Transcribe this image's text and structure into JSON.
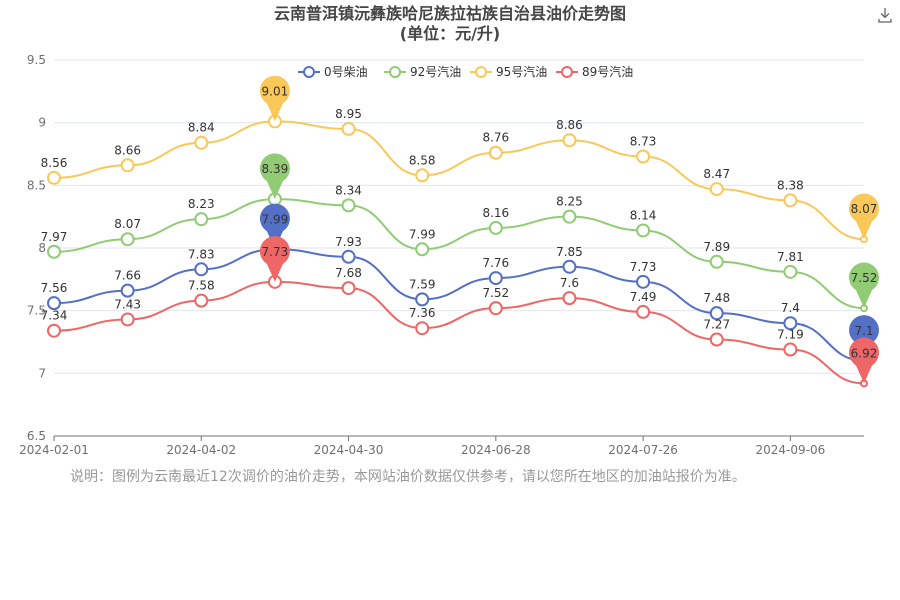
{
  "title_line1": "云南普洱镇沅彝族哈尼族拉祜族自治县油价走势图",
  "title_line2": "(单位：元/升)",
  "note": "说明：图例为云南最近12次调价的油价走势，本网站油价数据仅供参考，请以您所在地区的加油站报价为准。",
  "download_icon": "download-icon",
  "chart_data": {
    "type": "line",
    "title": "云南普洱镇沅彝族哈尼族拉祜族自治县油价走势图",
    "subtitle": "(单位：元/升)",
    "ylim": [
      6.5,
      9.5
    ],
    "yticks": [
      6.5,
      7,
      7.5,
      8,
      8.5,
      9,
      9.5
    ],
    "ytick_labels": [
      "6.5",
      "7",
      "7.5",
      "8",
      "8.5",
      "9",
      "9.5"
    ],
    "xticks": [
      "2024-02-01",
      "2024-04-02",
      "2024-04-30",
      "2024-06-28",
      "2024-07-26",
      "2024-09-06"
    ],
    "xtick_positions": [
      0,
      2,
      4,
      6,
      8,
      10
    ],
    "point_count": 12,
    "legend_position": "top-center",
    "grid": "horizontal",
    "series": [
      {
        "name": "0号柴油",
        "color": "#5470c6",
        "values": [
          7.56,
          7.66,
          7.83,
          7.99,
          7.93,
          7.59,
          7.76,
          7.85,
          7.73,
          7.48,
          7.4,
          7.1
        ],
        "max_label": "7.99",
        "last_label": "7.1"
      },
      {
        "name": "92号汽油",
        "color": "#91cc75",
        "values": [
          7.97,
          8.07,
          8.23,
          8.39,
          8.34,
          7.99,
          8.16,
          8.25,
          8.14,
          7.89,
          7.81,
          7.52
        ],
        "max_label": "8.39",
        "last_label": "7.52"
      },
      {
        "name": "95号汽油",
        "color": "#fac858",
        "values": [
          8.56,
          8.66,
          8.84,
          9.01,
          8.95,
          8.58,
          8.76,
          8.86,
          8.73,
          8.47,
          8.38,
          8.07
        ],
        "max_label": "9.01",
        "last_label": "8.07"
      },
      {
        "name": "89号汽油",
        "color": "#ee6666",
        "values": [
          7.34,
          7.43,
          7.58,
          7.73,
          7.68,
          7.36,
          7.52,
          7.6,
          7.49,
          7.27,
          7.19,
          6.92
        ],
        "max_label": "7.73",
        "last_label": "6.92"
      }
    ]
  }
}
